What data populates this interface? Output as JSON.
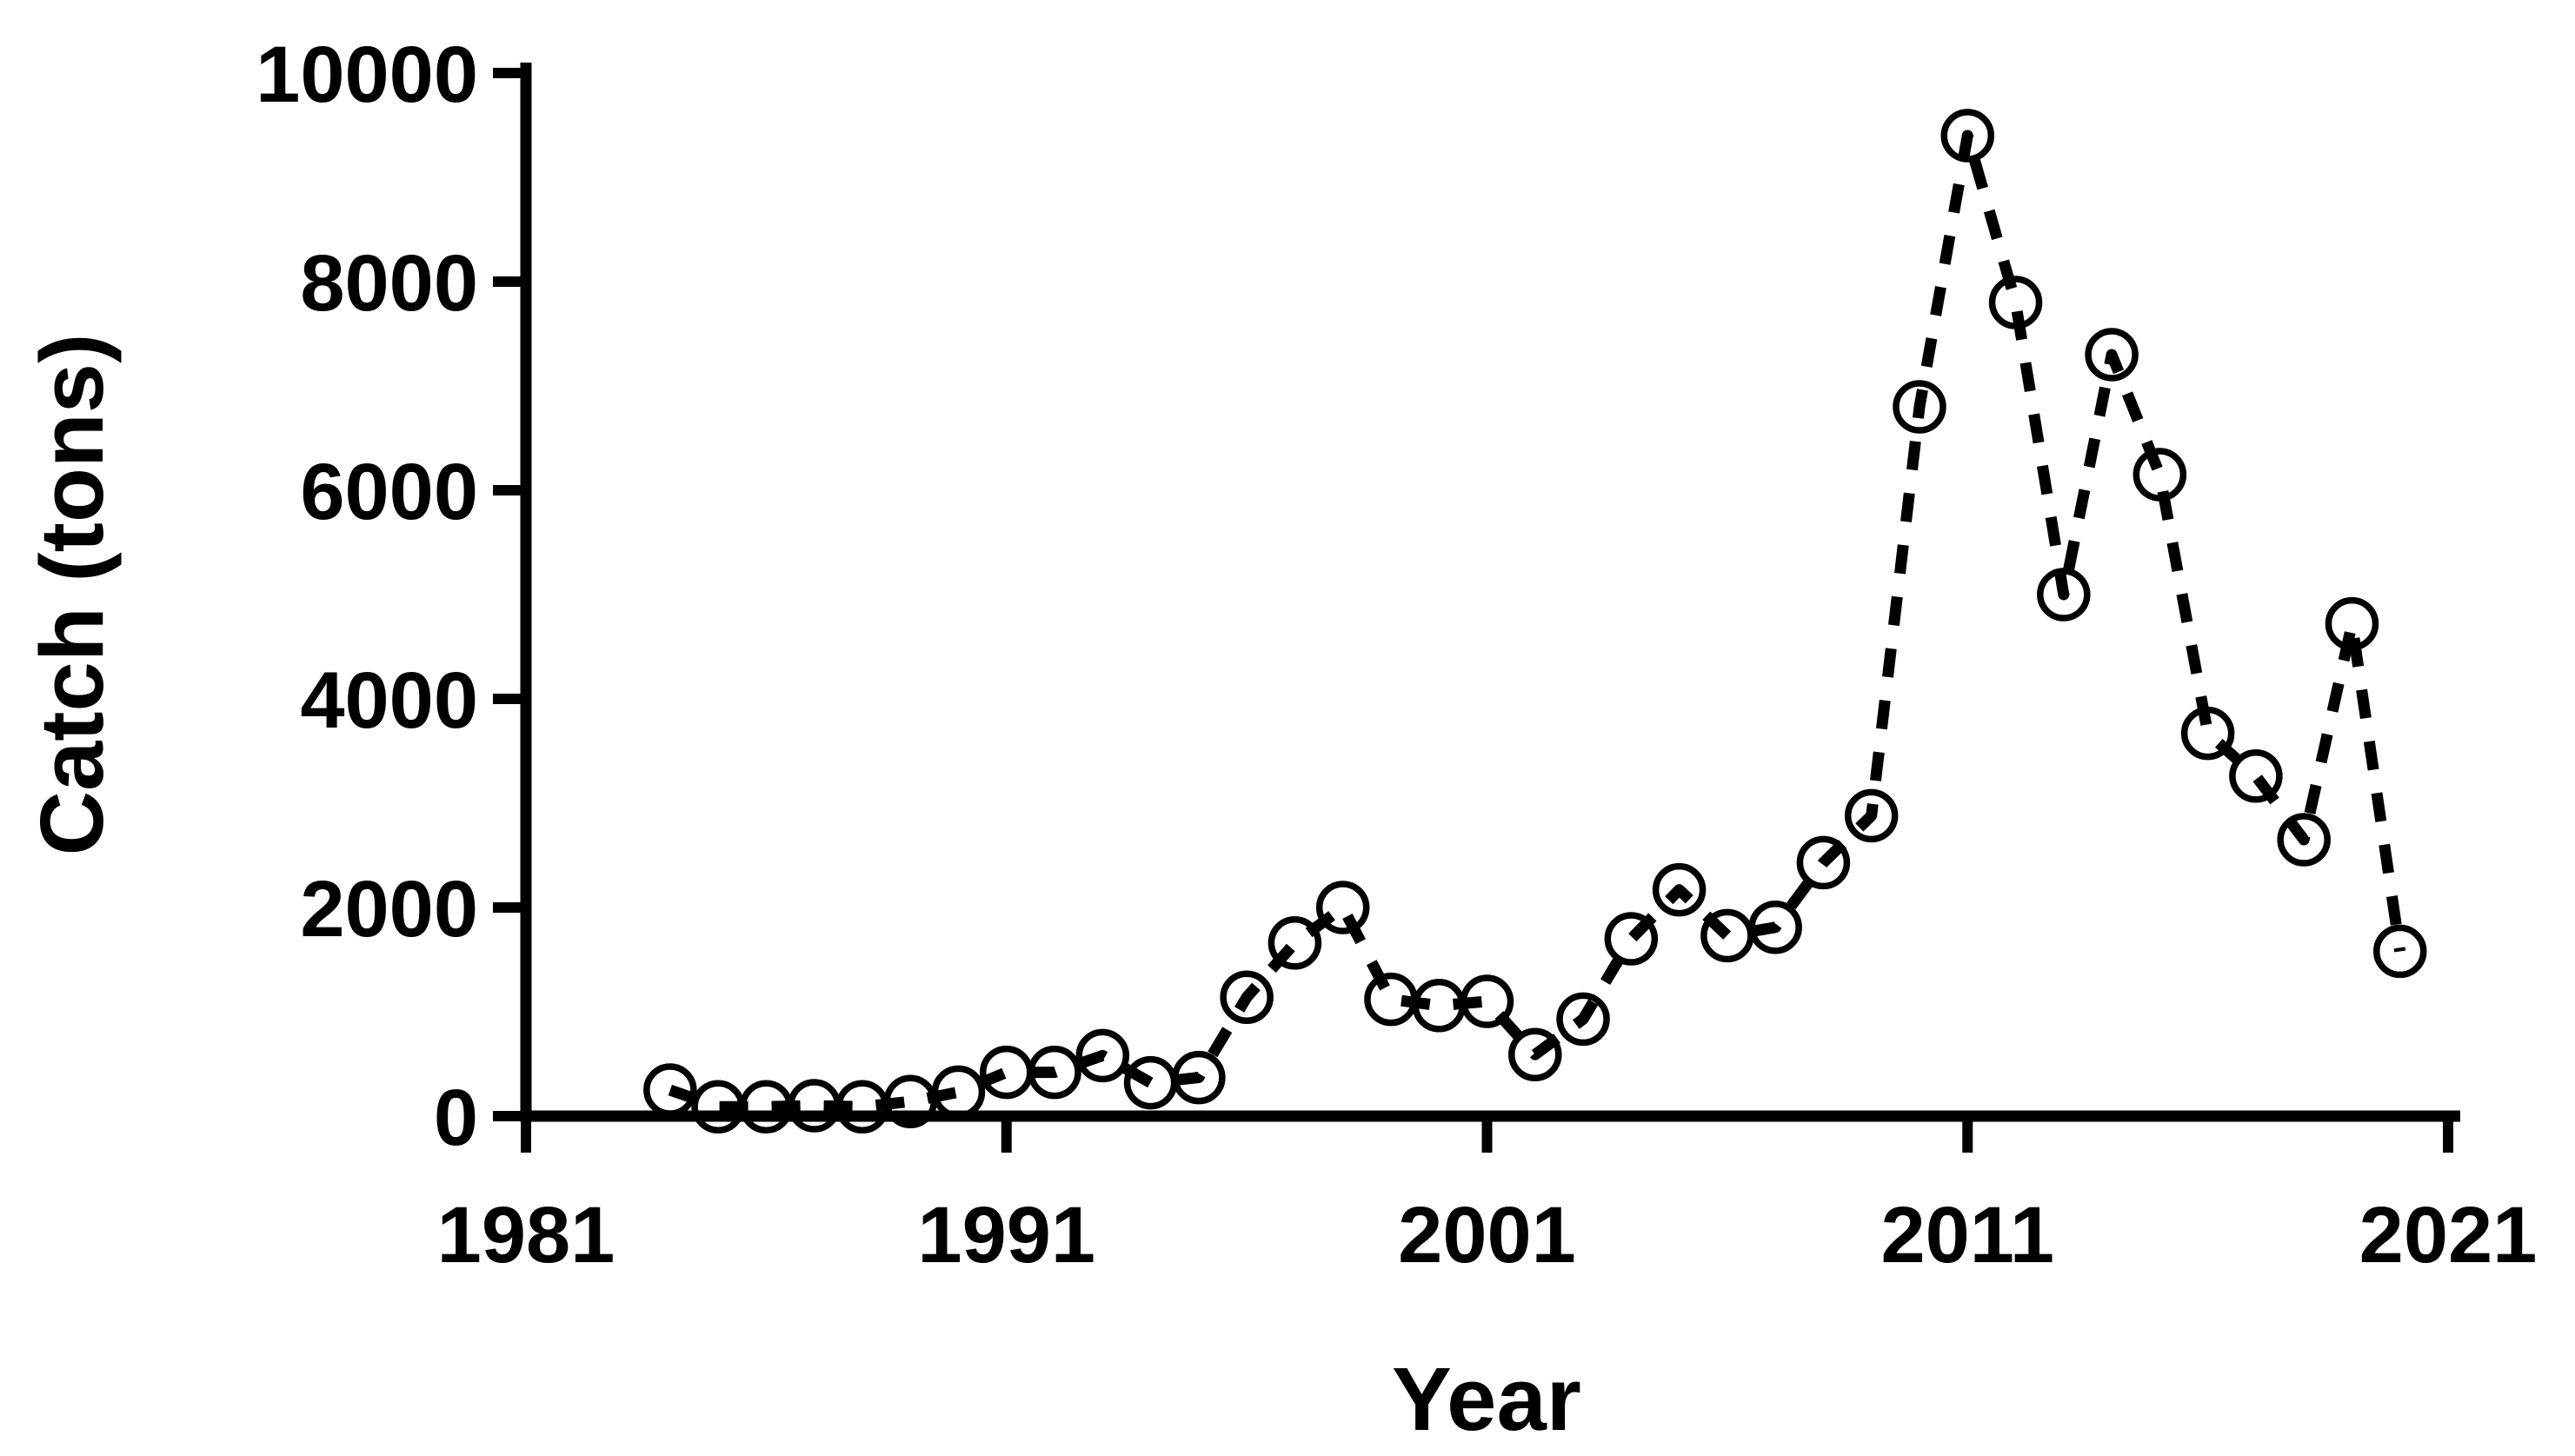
{
  "figure": {
    "background_color": "#ffffff",
    "ink_color": "#000000"
  },
  "chart_data": {
    "type": "line",
    "title": "",
    "xlabel": "Year",
    "ylabel": "Catch (tons)",
    "xlim": [
      1981,
      2021
    ],
    "ylim": [
      0,
      10000
    ],
    "x_ticks": [
      1981,
      1991,
      2001,
      2011,
      2021
    ],
    "y_ticks": [
      0,
      2000,
      4000,
      6000,
      8000,
      10000
    ],
    "grid": false,
    "legend_position": "none",
    "line_style": "dashed",
    "marker": "open-circle",
    "color": "#000000",
    "series": [
      {
        "name": "Catch",
        "x": [
          1984,
          1985,
          1986,
          1987,
          1988,
          1989,
          1990,
          1991,
          1992,
          1993,
          1994,
          1995,
          1996,
          1997,
          1998,
          1999,
          2000,
          2001,
          2002,
          2003,
          2004,
          2005,
          2006,
          2007,
          2008,
          2009,
          2010,
          2011,
          2012,
          2013,
          2014,
          2015,
          2016,
          2017,
          2018,
          2019,
          2020
        ],
        "y": [
          250,
          90,
          90,
          100,
          90,
          140,
          230,
          420,
          420,
          580,
          320,
          370,
          1140,
          1660,
          2000,
          1120,
          1060,
          1100,
          590,
          930,
          1700,
          2170,
          1730,
          1810,
          2430,
          2880,
          6800,
          9400,
          7800,
          5000,
          7300,
          6150,
          3670,
          3260,
          2650,
          4720,
          1580
        ]
      }
    ]
  }
}
